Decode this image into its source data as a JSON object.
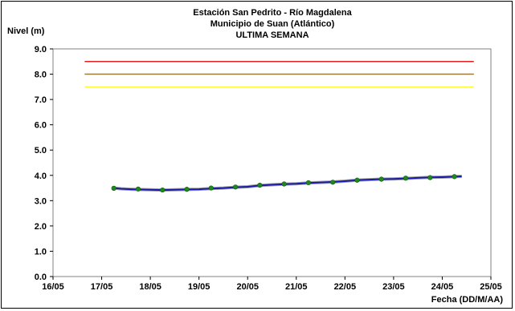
{
  "chart_data": {
    "type": "line",
    "title_lines": [
      "Estación San Pedrito - Río Magdalena",
      "Municipio de Suan (Atlántico)",
      "ULTIMA SEMANA"
    ],
    "ylabel": "Nivel (m)",
    "xlabel": "Fecha (DD/M/AA)",
    "x_ticks": [
      "16/05",
      "17/05",
      "18/05",
      "19/05",
      "20/05",
      "21/05",
      "22/05",
      "23/05",
      "24/05",
      "25/05"
    ],
    "y_ticks": [
      "0.0",
      "1.0",
      "2.0",
      "3.0",
      "4.0",
      "5.0",
      "6.0",
      "7.0",
      "8.0",
      "9.0"
    ],
    "xlim": [
      0,
      9
    ],
    "ylim": [
      0,
      9
    ],
    "x_unit": "days after 16/05",
    "grid": false,
    "thresholds": [
      {
        "value": 8.5,
        "color": "#e02020",
        "x_start": 0.65,
        "x_end": 8.65
      },
      {
        "value": 8.0,
        "color": "#9a7a3a",
        "x_start": 0.65,
        "x_end": 8.65
      },
      {
        "value": 7.5,
        "color": "#ffff33",
        "x_start": 0.65,
        "x_end": 8.65
      }
    ],
    "series": [
      {
        "color": "#1a1aa8",
        "line": true,
        "points": [
          [
            1.25,
            3.5
          ],
          [
            1.4,
            3.47
          ],
          [
            1.6,
            3.45
          ],
          [
            1.75,
            3.44
          ],
          [
            2.0,
            3.43
          ],
          [
            2.25,
            3.42
          ],
          [
            2.5,
            3.43
          ],
          [
            2.75,
            3.44
          ],
          [
            3.0,
            3.45
          ],
          [
            3.25,
            3.48
          ],
          [
            3.5,
            3.5
          ],
          [
            3.75,
            3.53
          ],
          [
            4.0,
            3.55
          ],
          [
            4.25,
            3.6
          ],
          [
            4.5,
            3.63
          ],
          [
            4.75,
            3.65
          ],
          [
            5.0,
            3.67
          ],
          [
            5.25,
            3.7
          ],
          [
            5.5,
            3.72
          ],
          [
            5.75,
            3.74
          ],
          [
            6.0,
            3.77
          ],
          [
            6.25,
            3.81
          ],
          [
            6.5,
            3.83
          ],
          [
            6.75,
            3.85
          ],
          [
            7.0,
            3.86
          ],
          [
            7.25,
            3.88
          ],
          [
            7.5,
            3.9
          ],
          [
            7.75,
            3.92
          ],
          [
            8.0,
            3.93
          ],
          [
            8.25,
            3.95
          ],
          [
            8.4,
            3.96
          ]
        ]
      },
      {
        "color": "#1e8a1e",
        "line": false,
        "points": [
          [
            1.25,
            3.49
          ],
          [
            1.75,
            3.46
          ],
          [
            2.25,
            3.42
          ],
          [
            2.75,
            3.45
          ],
          [
            3.25,
            3.5
          ],
          [
            3.75,
            3.54
          ],
          [
            4.25,
            3.61
          ],
          [
            4.75,
            3.66
          ],
          [
            5.25,
            3.71
          ],
          [
            5.75,
            3.73
          ],
          [
            6.25,
            3.81
          ],
          [
            6.75,
            3.85
          ],
          [
            7.25,
            3.89
          ],
          [
            7.75,
            3.91
          ],
          [
            8.25,
            3.95
          ]
        ]
      }
    ]
  }
}
